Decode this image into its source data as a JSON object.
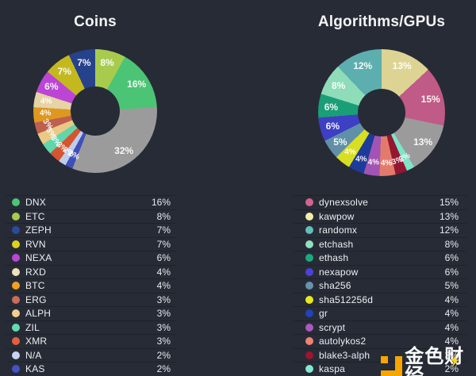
{
  "page": {
    "background": "#272b36",
    "separator_color": "#1e222c",
    "text_color": "#edeff2"
  },
  "watermark": {
    "text": "金色财经",
    "logo_color": "#f7a600",
    "bolt_color": "#ffd21e"
  },
  "chart_data": [
    {
      "type": "donut",
      "title": "Coins",
      "unit": "%",
      "legend_position": "bottom",
      "slices_clockwise_from_top": [
        {
          "label": "ETC",
          "value": 8,
          "text": "8%",
          "color": "#a8cb4e"
        },
        {
          "label": "DNX",
          "value": 16,
          "text": "16%",
          "color": "#4cc475"
        },
        {
          "label": "other",
          "value": 32,
          "text": "32%",
          "color": "#9b9b9b"
        },
        {
          "label": "KAS",
          "value": 2,
          "text": "2%",
          "color": "#3e4fba"
        },
        {
          "label": "N/A",
          "value": 2,
          "text": "2%",
          "color": "#becdeb"
        },
        {
          "label": "XMR",
          "value": 3,
          "text": "3%",
          "color": "#d4552f"
        },
        {
          "label": "ZIL",
          "value": 3,
          "text": "3%",
          "color": "#60d6aa"
        },
        {
          "label": "ALPH",
          "value": 3,
          "text": "3%",
          "color": "#eac987"
        },
        {
          "label": "ERG",
          "value": 3,
          "text": "3%",
          "color": "#bd604e"
        },
        {
          "label": "BTC",
          "value": 4,
          "text": "4%",
          "color": "#dd9820"
        },
        {
          "label": "RXD",
          "value": 4,
          "text": "4%",
          "color": "#e6d3a6"
        },
        {
          "label": "NEXA",
          "value": 6,
          "text": "6%",
          "color": "#bb46d4"
        },
        {
          "label": "RVN",
          "value": 7,
          "text": "7%",
          "color": "#c3b91f"
        },
        {
          "label": "ZEPH",
          "value": 7,
          "text": "7%",
          "color": "#26428a"
        }
      ],
      "legend": [
        {
          "label": "DNX",
          "pct_text": "16%",
          "color": "#4cc475"
        },
        {
          "label": "ETC",
          "pct_text": "8%",
          "color": "#a8cb4e"
        },
        {
          "label": "ZEPH",
          "pct_text": "7%",
          "color": "#2b4a9b"
        },
        {
          "label": "RVN",
          "pct_text": "7%",
          "color": "#ddd31f"
        },
        {
          "label": "NEXA",
          "pct_text": "6%",
          "color": "#bb46d4"
        },
        {
          "label": "RXD",
          "pct_text": "4%",
          "color": "#efe0b9"
        },
        {
          "label": "BTC",
          "pct_text": "4%",
          "color": "#f0a122"
        },
        {
          "label": "ERG",
          "pct_text": "3%",
          "color": "#c96c5c"
        },
        {
          "label": "ALPH",
          "pct_text": "3%",
          "color": "#f2cf8f"
        },
        {
          "label": "ZIL",
          "pct_text": "3%",
          "color": "#62dbb0"
        },
        {
          "label": "XMR",
          "pct_text": "3%",
          "color": "#e2603c"
        },
        {
          "label": "N/A",
          "pct_text": "2%",
          "color": "#c5d4f2"
        },
        {
          "label": "KAS",
          "pct_text": "2%",
          "color": "#4553c8"
        }
      ]
    },
    {
      "type": "donut",
      "title": "Algorithms/GPUs",
      "unit": "%",
      "legend_position": "bottom",
      "slices_clockwise_from_top": [
        {
          "label": "kawpow",
          "value": 13,
          "text": "13%",
          "color": "#ddd494"
        },
        {
          "label": "dynexsolve",
          "value": 15,
          "text": "15%",
          "color": "#c05a86"
        },
        {
          "label": "other",
          "value": 13,
          "text": "13%",
          "color": "#9b9b9b"
        },
        {
          "label": "kaspa",
          "value": 2,
          "text": "2%",
          "color": "#80e4c6"
        },
        {
          "label": "blake3-alph",
          "value": 3,
          "text": "3%",
          "color": "#941732"
        },
        {
          "label": "autolykos2",
          "value": 4,
          "text": "4%",
          "color": "#e37b6d"
        },
        {
          "label": "scrypt",
          "value": 4,
          "text": "4%",
          "color": "#a254b4"
        },
        {
          "label": "gr",
          "value": 4,
          "text": "4%",
          "color": "#1d3b99"
        },
        {
          "label": "sha512256d",
          "value": 4,
          "text": "4%",
          "color": "#d8de22"
        },
        {
          "label": "sha256",
          "value": 5,
          "text": "5%",
          "color": "#6090a8"
        },
        {
          "label": "nexapow",
          "value": 6,
          "text": "6%",
          "color": "#3d3fc4"
        },
        {
          "label": "ethash",
          "value": 6,
          "text": "6%",
          "color": "#1a9e77"
        },
        {
          "label": "etchash",
          "value": 8,
          "text": "8%",
          "color": "#8edcb8"
        },
        {
          "label": "randomx",
          "value": 12,
          "text": "12%",
          "color": "#5cafae"
        }
      ],
      "legend": [
        {
          "label": "dynexsolve",
          "pct_text": "15%",
          "color": "#d4628f"
        },
        {
          "label": "kawpow",
          "pct_text": "13%",
          "color": "#f2eda8"
        },
        {
          "label": "randomx",
          "pct_text": "12%",
          "color": "#64bdbd"
        },
        {
          "label": "etchash",
          "pct_text": "8%",
          "color": "#8fe0bd"
        },
        {
          "label": "ethash",
          "pct_text": "6%",
          "color": "#1ba87e"
        },
        {
          "label": "nexapow",
          "pct_text": "6%",
          "color": "#4a43d6"
        },
        {
          "label": "sha256",
          "pct_text": "5%",
          "color": "#6593ab"
        },
        {
          "label": "sha512256d",
          "pct_text": "4%",
          "color": "#e4e921"
        },
        {
          "label": "gr",
          "pct_text": "4%",
          "color": "#2143b8"
        },
        {
          "label": "scrypt",
          "pct_text": "4%",
          "color": "#aa59bd"
        },
        {
          "label": "autolykos2",
          "pct_text": "4%",
          "color": "#ed8276"
        },
        {
          "label": "blake3-alph",
          "pct_text": "3%",
          "color": "#9e1432"
        },
        {
          "label": "kaspa",
          "pct_text": "2%",
          "color": "#84e8cf"
        }
      ]
    }
  ]
}
